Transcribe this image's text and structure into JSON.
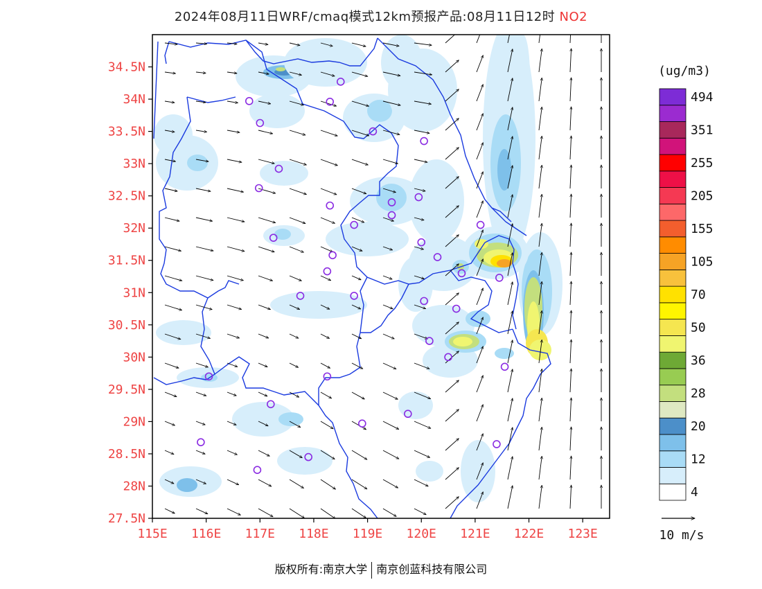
{
  "title": {
    "main": "2024年08月11日WRF/cmaq模式12km预报产品:08月11日12时",
    "pollutant": "NO2"
  },
  "map": {
    "lon_range": [
      115,
      123.5
    ],
    "lat_range": [
      27.5,
      35
    ],
    "lon_ticks": [
      "115E",
      "116E",
      "117E",
      "118E",
      "119E",
      "120E",
      "121E",
      "122E",
      "123E"
    ],
    "lat_ticks": [
      "27.5N",
      "28N",
      "28.5N",
      "29N",
      "29.5N",
      "30N",
      "30.5N",
      "31N",
      "31.5N",
      "32N",
      "32.5N",
      "33N",
      "33.5N",
      "34N",
      "34.5N"
    ],
    "axis_color": "#e33333",
    "boundary_color": "#1a3adf",
    "station_marker_color": "#8a2be2",
    "stations": [
      [
        118.5,
        34.27
      ],
      [
        116.8,
        33.97
      ],
      [
        118.3,
        33.96
      ],
      [
        117.0,
        33.63
      ],
      [
        119.1,
        33.5
      ],
      [
        120.05,
        33.35
      ],
      [
        117.35,
        32.92
      ],
      [
        116.98,
        32.62
      ],
      [
        119.45,
        32.4
      ],
      [
        119.95,
        32.48
      ],
      [
        118.3,
        32.35
      ],
      [
        119.45,
        32.2
      ],
      [
        118.75,
        32.05
      ],
      [
        121.1,
        32.05
      ],
      [
        117.25,
        31.85
      ],
      [
        120.0,
        31.78
      ],
      [
        118.35,
        31.58
      ],
      [
        120.3,
        31.55
      ],
      [
        118.25,
        31.33
      ],
      [
        120.75,
        31.3
      ],
      [
        121.45,
        31.23
      ],
      [
        117.75,
        30.95
      ],
      [
        118.75,
        30.95
      ],
      [
        120.05,
        30.87
      ],
      [
        120.65,
        30.75
      ],
      [
        120.15,
        30.25
      ],
      [
        120.5,
        30.0
      ],
      [
        116.05,
        29.7
      ],
      [
        118.25,
        29.7
      ],
      [
        121.55,
        29.85
      ],
      [
        117.2,
        29.27
      ],
      [
        118.9,
        28.97
      ],
      [
        119.75,
        29.12
      ],
      [
        115.9,
        28.68
      ],
      [
        121.4,
        28.65
      ],
      [
        117.9,
        28.45
      ],
      [
        116.95,
        28.25
      ]
    ]
  },
  "legend": {
    "unit": "(ug/m3)",
    "labels": [
      "4",
      "12",
      "20",
      "28",
      "36",
      "50",
      "70",
      "105",
      "155",
      "205",
      "255",
      "351",
      "494"
    ],
    "colors": [
      "#ffffff",
      "#d7eefb",
      "#a9dcf6",
      "#7ec0ea",
      "#4c8fc9",
      "#dfe9c2",
      "#c3df7e",
      "#98cc52",
      "#6ea935",
      "#f0f570",
      "#f5e650",
      "#fff500",
      "#ffe100",
      "#f8c13c",
      "#f6a325",
      "#ff8c00",
      "#f35e2d",
      "#fd6869",
      "#f53953",
      "#ee1047",
      "#ff0000",
      "#d1137a",
      "#a8285b",
      "#9b2bd0",
      "#7d2cd6"
    ],
    "wind_scale_label": "10 m/s"
  },
  "footer": {
    "left": "版权所有:南京大学",
    "right": "南京创蓝科技有限公司"
  }
}
